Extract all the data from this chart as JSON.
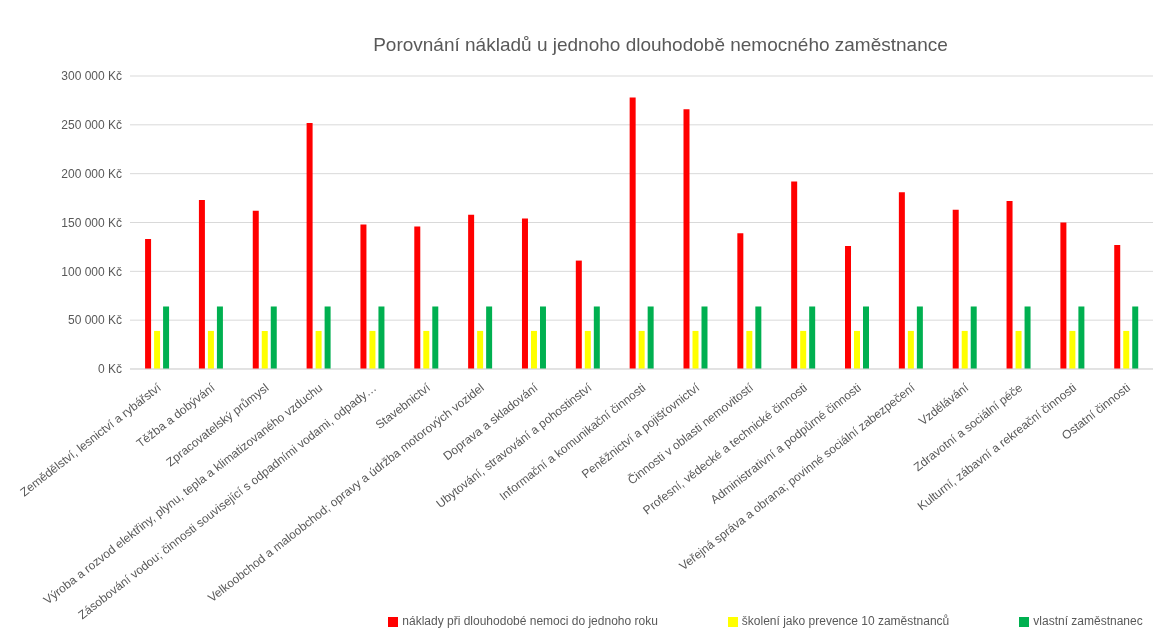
{
  "chart_data": {
    "type": "bar",
    "title": "Porovnání nákladů u jednoho dlouhodobě nemocného zaměstnance",
    "categories": [
      "Zemědělství, lesnictví a rybářství",
      "Těžba a dobývání",
      "Zpracovatelský průmysl",
      "Výroba a rozvod elektřiny, plynu, tepla a klimatizovaného vzduchu",
      "Zásobování vodou; činnosti související s odpadními vodami, odpady…",
      "Stavebnictví",
      "Velkoobchod a maloobchod; opravy a údržba motorových vozidel",
      "Doprava a skladování",
      "Ubytování, stravování a pohostinství",
      "Informační a komunikační činnosti",
      "Peněžnictví a pojišťovnictví",
      "Činnosti v oblasti nemovitostí",
      "Profesní, vědecké a technické činnosti",
      "Administrativní a podpůrné činnosti",
      "Veřejná správa a obrana; povinné sociální zabezpečení",
      "Vzdělávání",
      "Zdravotní a sociální péče",
      "Kulturní, zábavní a rekreační činnosti",
      "Ostatní činnosti"
    ],
    "series": [
      {
        "name": "náklady při dlouhodobé nemoci do jednoho roku",
        "color": "#ff0000",
        "values": [
          133000,
          173000,
          162000,
          252000,
          148000,
          146000,
          158000,
          154000,
          111000,
          278000,
          266000,
          139000,
          192000,
          126000,
          181000,
          163000,
          172000,
          150000,
          127000
        ]
      },
      {
        "name": "školení jako prevence 10 zaměstnanců",
        "color": "#ffff00",
        "values": [
          39000,
          39000,
          39000,
          39000,
          39000,
          39000,
          39000,
          39000,
          39000,
          39000,
          39000,
          39000,
          39000,
          39000,
          39000,
          39000,
          39000,
          39000,
          39000
        ]
      },
      {
        "name": "vlastní zaměstnanec",
        "color": "#00b050",
        "values": [
          64000,
          64000,
          64000,
          64000,
          64000,
          64000,
          64000,
          64000,
          64000,
          64000,
          64000,
          64000,
          64000,
          64000,
          64000,
          64000,
          64000,
          64000,
          64000
        ]
      }
    ],
    "ylim": [
      0,
      300000
    ],
    "yticks": [
      {
        "value": 0,
        "label": "0 Kč"
      },
      {
        "value": 50000,
        "label": "50 000 Kč"
      },
      {
        "value": 100000,
        "label": "100 000 Kč"
      },
      {
        "value": 150000,
        "label": "150 000 Kč"
      },
      {
        "value": 200000,
        "label": "200 000 Kč"
      },
      {
        "value": 250000,
        "label": "250 000 Kč"
      },
      {
        "value": 300000,
        "label": "300 000 Kč"
      }
    ],
    "grid": "y",
    "legend": "bottom"
  }
}
